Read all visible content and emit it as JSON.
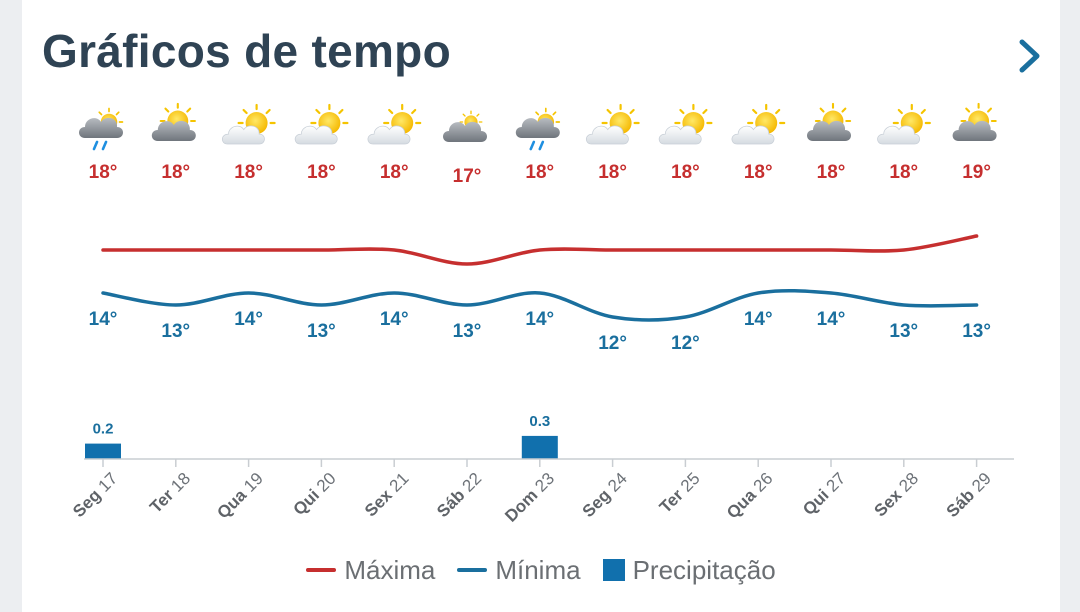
{
  "header": {
    "title": "Gráficos de tempo"
  },
  "icons": [
    "rain-cloud-icon",
    "sun-behind-cloud-icon",
    "partly-cloudy-icon",
    "partly-cloudy-icon",
    "partly-cloudy-icon",
    "cloud-icon",
    "rain-cloud-icon",
    "partly-cloudy-icon",
    "partly-cloudy-icon",
    "partly-cloudy-icon",
    "sun-behind-cloud-icon",
    "partly-cloudy-icon",
    "sun-behind-cloud-icon"
  ],
  "colors": {
    "max": "#c62f2f",
    "min": "#1a6f9e",
    "precip": "#1170ad",
    "title": "#2f4354"
  },
  "chart_data": {
    "type": "line",
    "x": [
      "Seg 17",
      "Ter 18",
      "Qua 19",
      "Qui 20",
      "Sex 21",
      "Sáb 22",
      "Dom 23",
      "Seg 24",
      "Ter 25",
      "Qua 26",
      "Qui 27",
      "Sex 28",
      "Sáb 29"
    ],
    "series": [
      {
        "name": "Máxima",
        "values": [
          18,
          18,
          18,
          18,
          18,
          17,
          18,
          18,
          18,
          18,
          18,
          18,
          19
        ],
        "labels": [
          "18°",
          "18°",
          "18°",
          "18°",
          "18°",
          "17°",
          "18°",
          "18°",
          "18°",
          "18°",
          "18°",
          "18°",
          "19°"
        ]
      },
      {
        "name": "Mínima",
        "values": [
          14,
          13,
          14,
          13,
          14,
          13,
          14,
          12,
          12,
          14,
          14,
          13,
          13
        ],
        "labels": [
          "14°",
          "13°",
          "14°",
          "13°",
          "14°",
          "13°",
          "14°",
          "12°",
          "12°",
          "14°",
          "14°",
          "13°",
          "13°"
        ]
      },
      {
        "name": "Precipitação",
        "type": "bar",
        "values": [
          0.2,
          0,
          0,
          0,
          0,
          0,
          0.3,
          0,
          0,
          0,
          0,
          0,
          0
        ],
        "labels": [
          "0.2",
          "",
          "",
          "",
          "",
          "",
          "0.3",
          "",
          "",
          "",
          "",
          "",
          ""
        ]
      }
    ],
    "legend": [
      "Máxima",
      "Mínima",
      "Precipitação"
    ],
    "legend_position": "bottom",
    "grid": false
  }
}
